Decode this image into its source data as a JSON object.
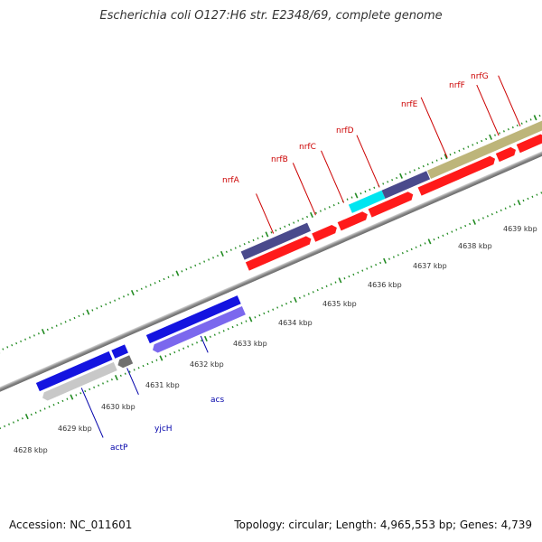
{
  "title": "Escherichia coli O127:H6 str. E2348/69, complete genome",
  "footer": {
    "accession": "Accession: NC_011601",
    "topology": "Topology: circular; Length: 4,965,553 bp; Genes: 4,739"
  },
  "colors": {
    "background": "#ffffff",
    "backbone": "#999999",
    "tick": "#228b22",
    "forward_label": "#cc0000",
    "reverse_label": "#0000aa",
    "red_gene": "#ff1a1a",
    "navy_gene": "#4a4a8c",
    "cyan_gene": "#00e5f0",
    "khaki_gene": "#bdb57a",
    "blue_gene": "#1414e0",
    "violet_gene": "#7b68ee",
    "grey_gene": "#c8c8c8",
    "dark_grey_gene": "#707070"
  },
  "kbp_labels": [
    "4628 kbp",
    "4629 kbp",
    "4630 kbp",
    "4631 kbp",
    "4632 kbp",
    "4633 kbp",
    "4634 kbp",
    "4635 kbp",
    "4636 kbp",
    "4637 kbp",
    "4638 kbp",
    "4639 kbp"
  ],
  "forward_gene_labels": [
    "nrfA",
    "nrfB",
    "nrfC",
    "nrfD",
    "nrfE",
    "nrfF",
    "nrfG"
  ],
  "reverse_gene_labels": [
    "actP",
    "yjcH",
    "acs"
  ]
}
